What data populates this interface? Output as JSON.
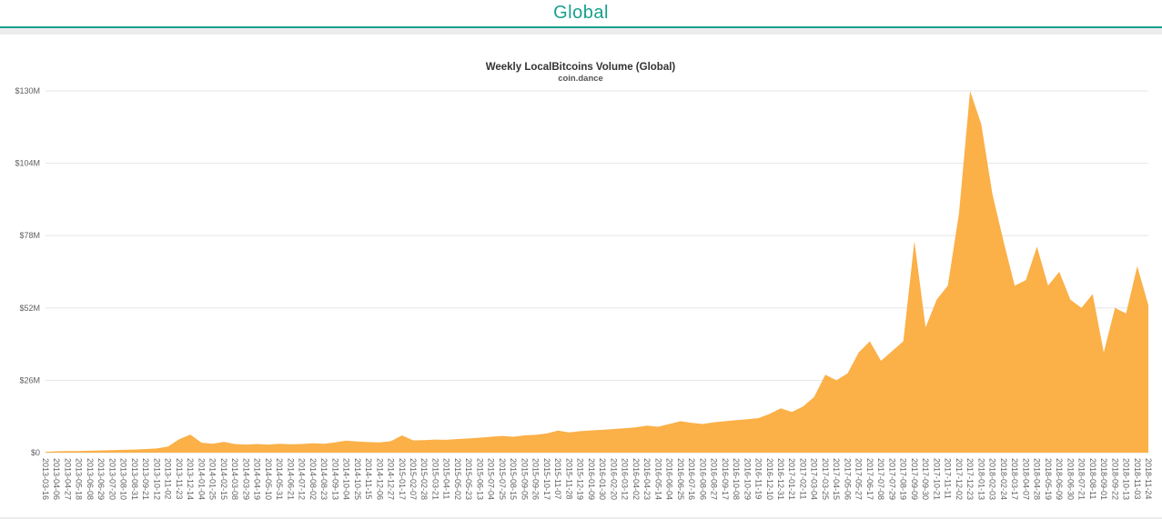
{
  "header": {
    "title": "Global",
    "accent_color": "#17a08c"
  },
  "chart_data": {
    "type": "area",
    "title": "Weekly LocalBitcoins Volume (Global)",
    "subtitle": "coin.dance",
    "unit": "USD millions",
    "xlabel": "",
    "ylabel": "",
    "ylim": [
      0,
      130
    ],
    "grid": "horizontal",
    "legend": "none",
    "y_ticks": {
      "values": [
        0,
        26,
        52,
        78,
        104,
        130
      ],
      "labels": [
        "$0",
        "$26M",
        "$52M",
        "$78M",
        "$104M",
        "$130M"
      ]
    },
    "x": [
      "2013-03-16",
      "2013-04-06",
      "2013-04-27",
      "2013-05-18",
      "2013-06-08",
      "2013-06-29",
      "2013-07-20",
      "2013-08-10",
      "2013-08-31",
      "2013-09-21",
      "2013-10-12",
      "2013-11-02",
      "2013-11-23",
      "2013-12-14",
      "2014-01-04",
      "2014-01-25",
      "2014-02-15",
      "2014-03-08",
      "2014-03-29",
      "2014-04-19",
      "2014-05-10",
      "2014-05-31",
      "2014-06-21",
      "2014-07-12",
      "2014-08-02",
      "2014-08-23",
      "2014-09-13",
      "2014-10-04",
      "2014-10-25",
      "2014-11-15",
      "2014-12-06",
      "2014-12-27",
      "2015-01-17",
      "2015-02-07",
      "2015-02-28",
      "2015-03-21",
      "2015-04-11",
      "2015-05-02",
      "2015-05-23",
      "2015-06-13",
      "2015-07-04",
      "2015-07-25",
      "2015-08-15",
      "2015-09-05",
      "2015-09-26",
      "2015-10-17",
      "2015-11-07",
      "2015-11-28",
      "2015-12-19",
      "2016-01-09",
      "2016-01-30",
      "2016-02-20",
      "2016-03-12",
      "2016-04-02",
      "2016-04-23",
      "2016-05-14",
      "2016-06-04",
      "2016-06-25",
      "2016-07-16",
      "2016-08-06",
      "2016-08-27",
      "2016-09-17",
      "2016-10-08",
      "2016-10-29",
      "2016-11-19",
      "2016-12-10",
      "2016-12-31",
      "2017-01-21",
      "2017-02-11",
      "2017-03-04",
      "2017-03-25",
      "2017-04-15",
      "2017-05-06",
      "2017-05-27",
      "2017-06-17",
      "2017-07-08",
      "2017-07-29",
      "2017-08-19",
      "2017-09-09",
      "2017-09-30",
      "2017-10-21",
      "2017-11-11",
      "2017-12-02",
      "2017-12-23",
      "2018-01-13",
      "2018-02-03",
      "2018-02-24",
      "2018-03-17",
      "2018-04-07",
      "2018-04-28",
      "2018-05-19",
      "2018-06-09",
      "2018-06-30",
      "2018-07-21",
      "2018-08-11",
      "2018-09-01",
      "2018-09-22",
      "2018-10-13",
      "2018-11-03",
      "2018-11-24"
    ],
    "values": [
      0.3,
      0.5,
      0.6,
      0.6,
      0.7,
      0.8,
      0.9,
      1.0,
      1.1,
      1.3,
      1.5,
      2.2,
      4.8,
      6.5,
      3.6,
      3.2,
      3.9,
      3.1,
      2.9,
      3.1,
      2.9,
      3.2,
      3.0,
      3.1,
      3.4,
      3.2,
      3.7,
      4.3,
      4.0,
      3.8,
      3.7,
      4.1,
      6.2,
      4.4,
      4.5,
      4.7,
      4.6,
      4.9,
      5.1,
      5.4,
      5.7,
      6.0,
      5.7,
      6.2,
      6.4,
      6.9,
      7.9,
      7.3,
      7.7,
      8.0,
      8.2,
      8.5,
      8.8,
      9.1,
      9.7,
      9.3,
      10.3,
      11.3,
      10.7,
      10.3,
      10.9,
      11.3,
      11.7,
      12.0,
      12.4,
      13.9,
      15.9,
      14.6,
      16.6,
      20.0,
      28.0,
      26.0,
      28.5,
      36.0,
      40.0,
      33.0,
      36.5,
      40.0,
      76.0,
      45.0,
      55.0,
      60.0,
      86.0,
      130.0,
      118.0,
      93.0,
      76.0,
      60.0,
      62.0,
      74.0,
      60.0,
      65.0,
      55.0,
      52.0,
      57.0,
      36.0,
      52.0,
      50.0,
      67.0,
      53.0
    ],
    "colors": {
      "area_fill": "#fbaa3a",
      "gridline": "#e6e6e6",
      "axis_labels": "#606060",
      "title_text": "#333333",
      "subtitle_text": "#555555"
    }
  }
}
